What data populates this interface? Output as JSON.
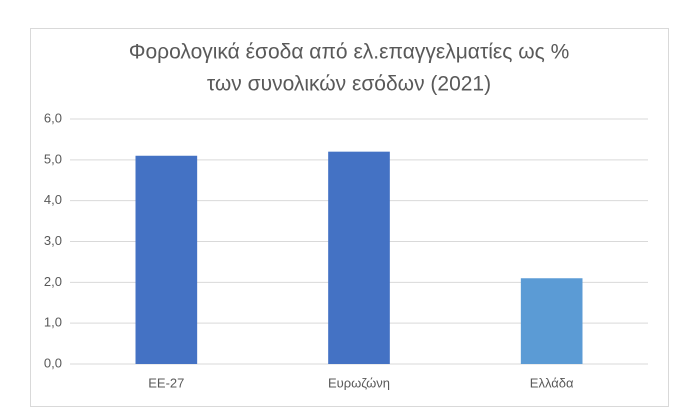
{
  "chart_data": {
    "type": "bar",
    "title": [
      "Φορολογικά έσοδα από ελ.επαγγελματίες ως %",
      "των συνολικών εσόδων (2021)"
    ],
    "categories": [
      "ΕΕ-27",
      "Ευρωζώνη",
      "Ελλάδα"
    ],
    "values": [
      5.1,
      5.2,
      2.1
    ],
    "colors": [
      "#4472c4",
      "#4472c4",
      "#5b9bd5"
    ],
    "ylim": [
      0,
      6
    ],
    "yticks": [
      {
        "value": 0,
        "label": "0,0"
      },
      {
        "value": 1,
        "label": "1,0"
      },
      {
        "value": 2,
        "label": "2,0"
      },
      {
        "value": 3,
        "label": "3,0"
      },
      {
        "value": 4,
        "label": "4,0"
      },
      {
        "value": 5,
        "label": "5,0"
      },
      {
        "value": 6,
        "label": "6,0"
      }
    ],
    "grid": true
  }
}
